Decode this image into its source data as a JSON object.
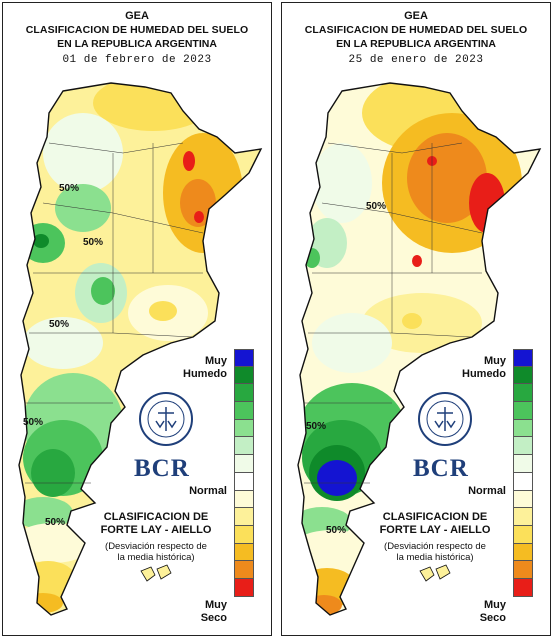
{
  "panels": [
    {
      "id": "left",
      "header": {
        "org": "GEA",
        "title_line1": "CLASIFICACION DE HUMEDAD DEL SUELO",
        "title_line2": "EN LA REPUBLICA ARGENTINA",
        "date": "01 de febrero de 2023"
      },
      "contour_labels": [
        "50%",
        "50%",
        "50%",
        "50%",
        "50%"
      ]
    },
    {
      "id": "right",
      "header": {
        "org": "GEA",
        "title_line1": "CLASIFICACION DE HUMEDAD DEL SUELO",
        "title_line2": "EN LA REPUBLICA ARGENTINA",
        "date": "25 de enero de 2023"
      },
      "contour_labels": [
        "50%",
        "50%",
        "50%"
      ]
    }
  ],
  "legend": {
    "top_label_line1": "Muy",
    "top_label_line2": "Humedo",
    "middle_label": "Normal",
    "bottom_label_line1": "Muy",
    "bottom_label_line2": "Seco",
    "colors": [
      "#1414d2",
      "#0f8a2a",
      "#28a840",
      "#4cc45c",
      "#8be08f",
      "#c3efc5",
      "#f0fbe8",
      "#ffffff",
      "#fefbd8",
      "#fdf19a",
      "#fbe05a",
      "#f5bc22",
      "#ee8a1c",
      "#e81e18"
    ]
  },
  "classification": {
    "line1": "CLASIFICACION DE",
    "line2": "FORTE LAY - AIELLO",
    "note_line1": "(Desviación respecto de",
    "note_line2": "la media histórica)"
  },
  "logo": {
    "brand": "BCR",
    "seal_text": "BOLSA DE COMERCIO DE ROSARIO"
  }
}
